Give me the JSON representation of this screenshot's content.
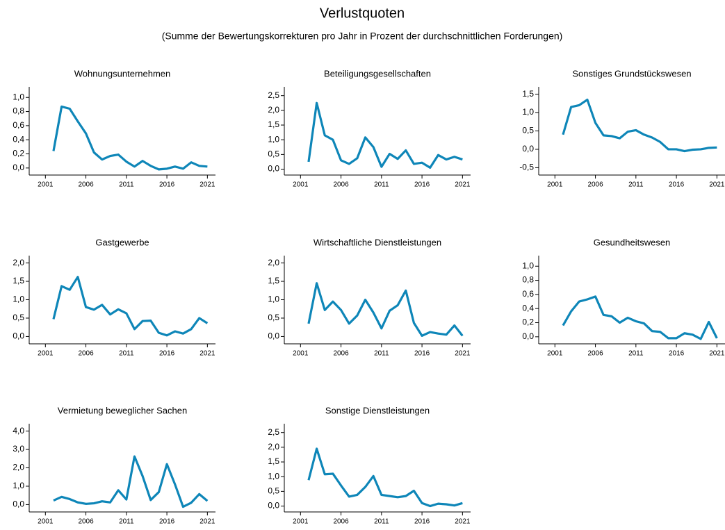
{
  "title": "Verlustquoten",
  "subtitle": "(Summe der Bewertungskorrekturen pro Jahr in Prozent der durchschnittlichen Forderungen)",
  "chart_data": [
    {
      "type": "line",
      "title": "Wohnungsunternehmen",
      "x": [
        2002,
        2003,
        2004,
        2005,
        2006,
        2007,
        2008,
        2009,
        2010,
        2011,
        2012,
        2013,
        2014,
        2015,
        2016,
        2017,
        2018,
        2019,
        2020,
        2021
      ],
      "series": [
        {
          "color": "#0e86b8",
          "values": [
            0.24,
            0.87,
            0.84,
            0.66,
            0.49,
            0.22,
            0.12,
            0.17,
            0.19,
            0.09,
            0.02,
            0.1,
            0.03,
            -0.02,
            -0.01,
            0.02,
            -0.01,
            0.08,
            0.03,
            0.02
          ]
        }
      ],
      "xlim": [
        1999,
        2022
      ],
      "xticks": [
        2001,
        2006,
        2011,
        2016,
        2021
      ],
      "ylim": [
        -0.1,
        1.15
      ],
      "yticks": [
        {
          "value": 0,
          "label": "0,0"
        },
        {
          "value": 0.2,
          "label": "0,2"
        },
        {
          "value": 0.4,
          "label": "0,4"
        },
        {
          "value": 0.6,
          "label": "0,6"
        },
        {
          "value": 0.8,
          "label": "0,8"
        },
        {
          "value": 1,
          "label": "1,0"
        }
      ]
    },
    {
      "type": "line",
      "title": "Beteiligungsgesellschaften",
      "x": [
        2002,
        2003,
        2004,
        2005,
        2006,
        2007,
        2008,
        2009,
        2010,
        2011,
        2012,
        2013,
        2014,
        2015,
        2016,
        2017,
        2018,
        2019,
        2020,
        2021
      ],
      "series": [
        {
          "color": "#0e86b8",
          "values": [
            0.25,
            2.25,
            1.15,
            1.0,
            0.3,
            0.18,
            0.37,
            1.08,
            0.75,
            0.08,
            0.52,
            0.35,
            0.64,
            0.18,
            0.22,
            0.05,
            0.48,
            0.33,
            0.42,
            0.33
          ]
        }
      ],
      "xlim": [
        1999,
        2022
      ],
      "xticks": [
        2001,
        2006,
        2011,
        2016,
        2021
      ],
      "ylim": [
        -0.2,
        2.8
      ],
      "yticks": [
        {
          "value": 0,
          "label": "0,0"
        },
        {
          "value": 0.5,
          "label": "0,5"
        },
        {
          "value": 1,
          "label": "1,0"
        },
        {
          "value": 1.5,
          "label": "1,5"
        },
        {
          "value": 2,
          "label": "2,0"
        },
        {
          "value": 2.5,
          "label": "2,5"
        }
      ]
    },
    {
      "type": "line",
      "title": "Sonstiges Grundstückswesen",
      "x": [
        2002,
        2003,
        2004,
        2005,
        2006,
        2007,
        2008,
        2009,
        2010,
        2011,
        2012,
        2013,
        2014,
        2015,
        2016,
        2017,
        2018,
        2019,
        2020,
        2021
      ],
      "series": [
        {
          "color": "#0e86b8",
          "values": [
            0.4,
            1.15,
            1.2,
            1.35,
            0.72,
            0.38,
            0.36,
            0.3,
            0.48,
            0.52,
            0.4,
            0.32,
            0.2,
            0.0,
            0.0,
            -0.05,
            -0.01,
            0.0,
            0.04,
            0.05
          ]
        }
      ],
      "xlim": [
        1999,
        2022
      ],
      "xticks": [
        2001,
        2006,
        2011,
        2016,
        2021
      ],
      "ylim": [
        -0.7,
        1.7
      ],
      "yticks": [
        {
          "value": -0.5,
          "label": "-0,5"
        },
        {
          "value": 0,
          "label": "0,0"
        },
        {
          "value": 0.5,
          "label": "0,5"
        },
        {
          "value": 1,
          "label": "1,0"
        },
        {
          "value": 1.5,
          "label": "1,5"
        }
      ]
    },
    {
      "type": "line",
      "title": "Gastgewerbe",
      "x": [
        2002,
        2003,
        2004,
        2005,
        2006,
        2007,
        2008,
        2009,
        2010,
        2011,
        2012,
        2013,
        2014,
        2015,
        2016,
        2017,
        2018,
        2019,
        2020,
        2021
      ],
      "series": [
        {
          "color": "#0e86b8",
          "values": [
            0.47,
            1.37,
            1.27,
            1.62,
            0.8,
            0.73,
            0.86,
            0.6,
            0.74,
            0.63,
            0.2,
            0.42,
            0.43,
            0.1,
            0.03,
            0.14,
            0.08,
            0.2,
            0.5,
            0.36
          ]
        }
      ],
      "xlim": [
        1999,
        2022
      ],
      "xticks": [
        2001,
        2006,
        2011,
        2016,
        2021
      ],
      "ylim": [
        -0.2,
        2.2
      ],
      "yticks": [
        {
          "value": 0,
          "label": "0,0"
        },
        {
          "value": 0.5,
          "label": "0,5"
        },
        {
          "value": 1,
          "label": "1,0"
        },
        {
          "value": 1.5,
          "label": "1,5"
        },
        {
          "value": 2,
          "label": "2,0"
        }
      ]
    },
    {
      "type": "line",
      "title": "Wirtschaftliche Dienstleistungen",
      "x": [
        2002,
        2003,
        2004,
        2005,
        2006,
        2007,
        2008,
        2009,
        2010,
        2011,
        2012,
        2013,
        2014,
        2015,
        2016,
        2017,
        2018,
        2019,
        2020,
        2021
      ],
      "series": [
        {
          "color": "#0e86b8",
          "values": [
            0.35,
            1.45,
            0.72,
            0.95,
            0.72,
            0.35,
            0.57,
            1.0,
            0.65,
            0.22,
            0.7,
            0.85,
            1.25,
            0.37,
            0.02,
            0.12,
            0.08,
            0.05,
            0.3,
            0.02
          ]
        }
      ],
      "xlim": [
        1999,
        2022
      ],
      "xticks": [
        2001,
        2006,
        2011,
        2016,
        2021
      ],
      "ylim": [
        -0.2,
        2.2
      ],
      "yticks": [
        {
          "value": 0,
          "label": "0,0"
        },
        {
          "value": 0.5,
          "label": "0,5"
        },
        {
          "value": 1,
          "label": "1,0"
        },
        {
          "value": 1.5,
          "label": "1,5"
        },
        {
          "value": 2,
          "label": "2,0"
        }
      ]
    },
    {
      "type": "line",
      "title": "Gesundheitswesen",
      "x": [
        2002,
        2003,
        2004,
        2005,
        2006,
        2007,
        2008,
        2009,
        2010,
        2011,
        2012,
        2013,
        2014,
        2015,
        2016,
        2017,
        2018,
        2019,
        2020,
        2021
      ],
      "series": [
        {
          "color": "#0e86b8",
          "values": [
            0.16,
            0.36,
            0.5,
            0.53,
            0.57,
            0.31,
            0.29,
            0.2,
            0.27,
            0.22,
            0.19,
            0.08,
            0.07,
            -0.02,
            -0.02,
            0.05,
            0.03,
            -0.03,
            0.21,
            -0.02
          ]
        }
      ],
      "xlim": [
        1999,
        2022
      ],
      "xticks": [
        2001,
        2006,
        2011,
        2016,
        2021
      ],
      "ylim": [
        -0.1,
        1.15
      ],
      "yticks": [
        {
          "value": 0,
          "label": "0,0"
        },
        {
          "value": 0.2,
          "label": "0,2"
        },
        {
          "value": 0.4,
          "label": "0,4"
        },
        {
          "value": 0.6,
          "label": "0,6"
        },
        {
          "value": 0.8,
          "label": "0,8"
        },
        {
          "value": 1,
          "label": "1,0"
        }
      ]
    },
    {
      "type": "line",
      "title": "Vermietung beweglicher Sachen",
      "x": [
        2002,
        2003,
        2004,
        2005,
        2006,
        2007,
        2008,
        2009,
        2010,
        2011,
        2012,
        2013,
        2014,
        2015,
        2016,
        2017,
        2018,
        2019,
        2020,
        2021
      ],
      "series": [
        {
          "color": "#0e86b8",
          "values": [
            0.22,
            0.42,
            0.3,
            0.12,
            0.04,
            0.07,
            0.18,
            0.12,
            0.78,
            0.28,
            2.62,
            1.55,
            0.25,
            0.68,
            2.2,
            1.1,
            -0.12,
            0.1,
            0.57,
            0.2
          ]
        }
      ],
      "xlim": [
        1999,
        2022
      ],
      "xticks": [
        2001,
        2006,
        2011,
        2016,
        2021
      ],
      "ylim": [
        -0.4,
        4.4
      ],
      "yticks": [
        {
          "value": 0,
          "label": "0,0"
        },
        {
          "value": 1,
          "label": "1,0"
        },
        {
          "value": 2,
          "label": "2,0"
        },
        {
          "value": 3,
          "label": "3,0"
        },
        {
          "value": 4,
          "label": "4,0"
        }
      ]
    },
    {
      "type": "line",
      "title": "Sonstige Dienstleistungen",
      "x": [
        2002,
        2003,
        2004,
        2005,
        2006,
        2007,
        2008,
        2009,
        2010,
        2011,
        2012,
        2013,
        2014,
        2015,
        2016,
        2017,
        2018,
        2019,
        2020,
        2021
      ],
      "series": [
        {
          "color": "#0e86b8",
          "values": [
            0.88,
            1.95,
            1.08,
            1.1,
            0.7,
            0.32,
            0.38,
            0.65,
            1.02,
            0.38,
            0.34,
            0.3,
            0.34,
            0.52,
            0.1,
            0.0,
            0.08,
            0.06,
            0.02,
            0.1
          ]
        }
      ],
      "xlim": [
        1999,
        2022
      ],
      "xticks": [
        2001,
        2006,
        2011,
        2016,
        2021
      ],
      "ylim": [
        -0.2,
        2.8
      ],
      "yticks": [
        {
          "value": 0,
          "label": "0,0"
        },
        {
          "value": 0.5,
          "label": "0,5"
        },
        {
          "value": 1,
          "label": "1,0"
        },
        {
          "value": 1.5,
          "label": "1,5"
        },
        {
          "value": 2,
          "label": "2,0"
        },
        {
          "value": 2.5,
          "label": "2,5"
        }
      ]
    }
  ]
}
